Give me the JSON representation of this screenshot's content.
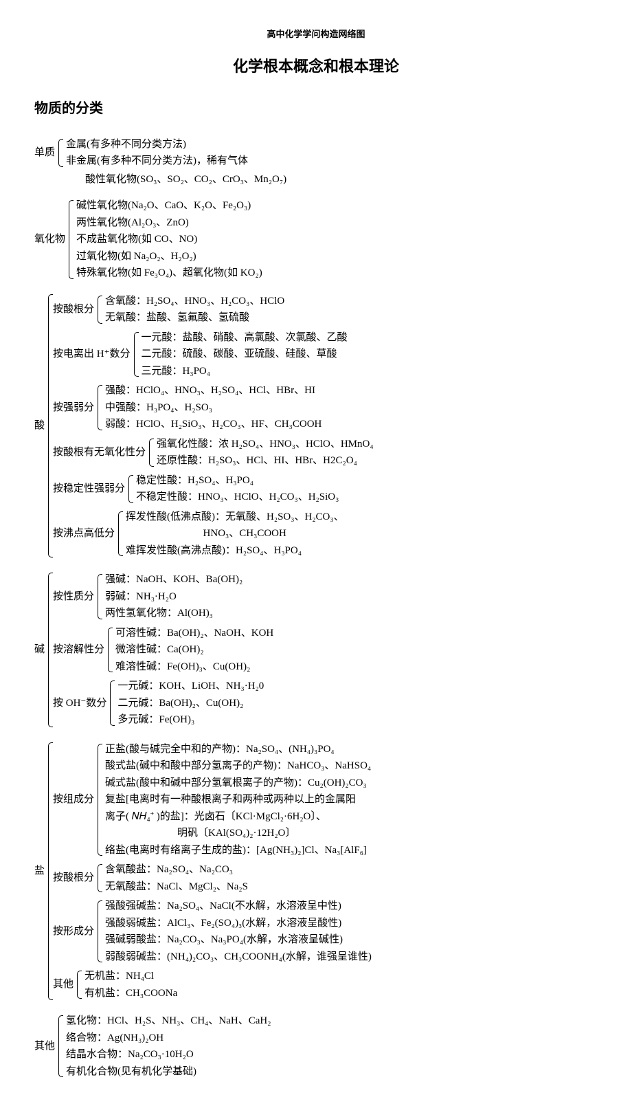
{
  "header": "高中化学学问构造网络图",
  "title": "化学根本概念和根本理论",
  "section": "物质的分类",
  "danZhi": {
    "label": "单质",
    "items": [
      "金属(有多种不同分类方法)",
      "非金属(有多种不同分类方法)，稀有气体"
    ]
  },
  "yangHuaWu": {
    "label": "氧化物",
    "preline": "酸性氧化物(SO₃、SO₂、CO₂、CrO₃、Mn₂O₇)",
    "items": [
      "碱性氧化物(Na₂O、CaO、K₂O、Fe₂O₃)",
      "两性氧化物(Al₂O₃、ZnO)",
      "不成盐氧化物(如 CO、NO)",
      "过氧化物(如 Na₂O₂、H₂O₂)",
      "特殊氧化物(如 Fe₃O₄)、超氧化物(如 KO₂)"
    ]
  },
  "suan": {
    "label": "酸",
    "groups": [
      {
        "label": "按酸根分",
        "items": [
          "含氧酸：H₂SO₄、HNO₃、H₂CO₃、HClO",
          "无氧酸：盐酸、氢氟酸、氢硫酸"
        ]
      },
      {
        "label": "按电离出 H⁺数分",
        "items": [
          "一元酸：盐酸、硝酸、高氯酸、次氯酸、乙酸",
          "二元酸：硫酸、碳酸、亚硫酸、硅酸、草酸",
          "三元酸：H₃PO₄"
        ]
      },
      {
        "label": "按强弱分",
        "items": [
          "强酸：HClO₄、HNO₃、H₂SO₄、HCl、HBr、HI",
          "中强酸：H₃PO₄、H₂SO₃",
          "弱酸：HClO、H₂SiO₃、H₂CO₃、HF、CH₃COOH"
        ]
      },
      {
        "label": "按酸根有无氧化性分",
        "items": [
          "强氧化性酸：浓 H₂SO₄、HNO₃、HClO、HMnO₄",
          "还原性酸：H₂SO₃、HCl、HI、HBr、H2C₂O₄"
        ]
      },
      {
        "label": "按稳定性强弱分",
        "items": [
          "稳定性酸：H₂SO₄、H₃PO₄",
          "不稳定性酸：HNO₃、HClO、H₂CO₃、H₂SiO₃"
        ]
      },
      {
        "label": "按沸点高低分",
        "items": [
          "挥发性酸(低沸点酸)：无氧酸、H₂SO₃、H₂CO₃、",
          "                              HNO₃、CH₃COOH",
          "难挥发性酸(高沸点酸)：H₂SO₄、H₃PO₄"
        ]
      }
    ]
  },
  "jian": {
    "label": "碱",
    "groups": [
      {
        "label": "按性质分",
        "items": [
          "强碱：NaOH、KOH、Ba(OH)₂",
          "弱碱：NH₃·H₂O",
          "两性氢氧化物：Al(OH)₃"
        ]
      },
      {
        "label": "按溶解性分",
        "items": [
          "可溶性碱：Ba(OH)₂、NaOH、KOH",
          "微溶性碱：Ca(OH)₂",
          "难溶性碱：Fe(OH)₃、Cu(OH)₂"
        ]
      },
      {
        "label": "按 OH⁻数分",
        "items": [
          "一元碱：KOH、LiOH、NH₃·H₂0",
          "二元碱：Ba(OH)₂、Cu(OH)₂",
          "多元碱：Fe(OH)₃"
        ]
      }
    ]
  },
  "yan": {
    "label": "盐",
    "groups": [
      {
        "label": "按组成分",
        "items": [
          "正盐(酸与碱完全中和的产物)：Na₂SO₄、(NH₄)₃PO₄",
          "酸式盐(碱中和酸中部分氢离子的产物)：NaHCO₃、NaHSO₄",
          "碱式盐(酸中和碱中部分氢氧根离子的产物)：Cu₂(OH)₂CO₃",
          "复盐[电离时有一种酸根离子和两种或两种以上的金属阳",
          "离子( 𝑁𝐻₄⁺ )的盐]：光卤石〔KCl·MgCl₂·6H₂O〕、",
          "                            明矾〔KAl(SO₄)₂·12H₂O〕",
          "络盐(电离时有络离子生成的盐)：[Ag(NH₃)₂]Cl、Na₃[AlF₆]"
        ]
      },
      {
        "label": "按酸根分",
        "items": [
          "含氧酸盐：Na₂SO₄、Na₂CO₃",
          "无氧酸盐：NaCl、MgCl₂、Na₂S"
        ]
      },
      {
        "label": "按形成分",
        "items": [
          "强酸强碱盐：Na₂SO₄、NaCl(不水解，水溶液呈中性)",
          "强酸弱碱盐：AlCl₃、Fe₂(SO₄)₃(水解，水溶液呈酸性)",
          "强碱弱酸盐：Na₂CO₃、Na₃PO₄(水解，水溶液呈碱性)",
          "弱酸弱碱盐：(NH₄)₂CO₃、CH₃COONH₄(水解，谁强呈谁性)"
        ]
      },
      {
        "label": "其他",
        "items": [
          "无机盐：NH₄Cl",
          "有机盐：CH₃COONa"
        ]
      }
    ]
  },
  "qiTa": {
    "label": "其他",
    "items": [
      "氢化物：HCl、H₂S、NH₃、CH₄、NaH、CaH₂",
      "络合物：Ag(NH₃)₂OH",
      "结晶水合物：Na₂CO₃·10H₂O",
      "有机化合物(见有机化学基础)"
    ]
  }
}
